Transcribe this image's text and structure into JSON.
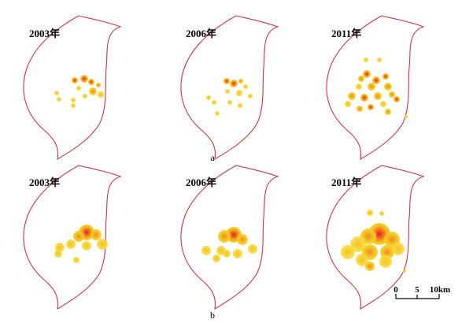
{
  "colors": {
    "boundary": "#cc3344",
    "hotspot_low": "#f5d020",
    "hotspot_mid": "#f5a020",
    "hotspot_high": "#e82020",
    "background": "#ffffff"
  },
  "rows": [
    {
      "label": "a",
      "panels": [
        {
          "year": "2003年"
        },
        {
          "year": "2006年"
        },
        {
          "year": "2011年"
        }
      ]
    },
    {
      "label": "b",
      "panels": [
        {
          "year": "2003年"
        },
        {
          "year": "2006年"
        },
        {
          "year": "2011年"
        }
      ]
    }
  ],
  "scale_bar": {
    "ticks": [
      "0",
      "5",
      "10km"
    ]
  }
}
